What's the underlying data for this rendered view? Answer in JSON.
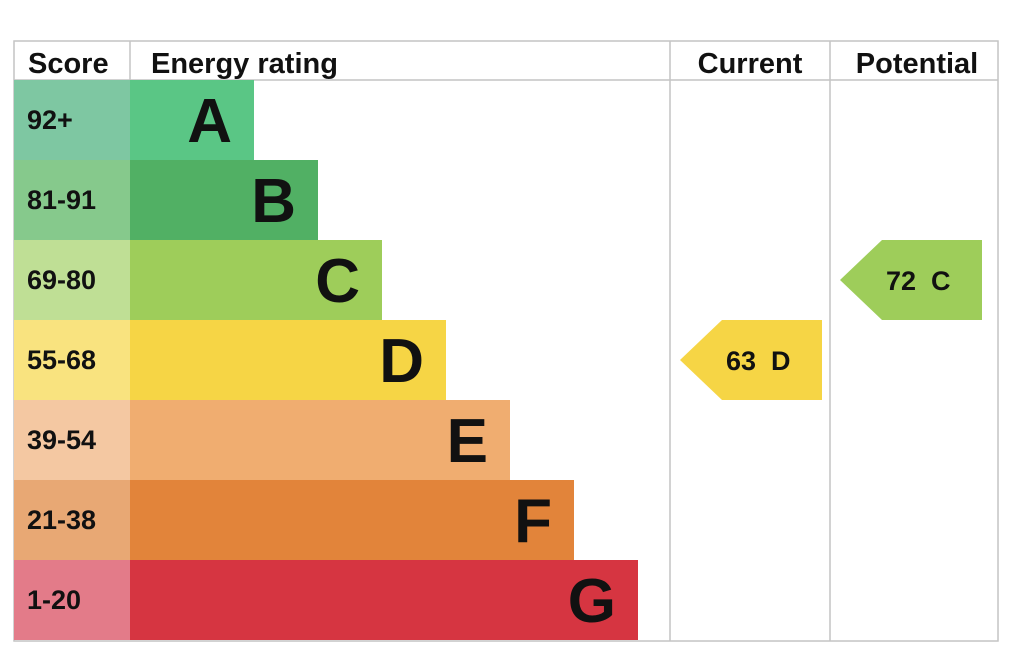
{
  "chart_data": {
    "type": "table",
    "headers": {
      "score": "Score",
      "rating": "Energy rating",
      "current": "Current",
      "potential": "Potential"
    },
    "bands": [
      {
        "score": "92+",
        "letter": "A",
        "color": "#5ac685",
        "score_color": "#7ec7a2"
      },
      {
        "score": "81-91",
        "letter": "B",
        "color": "#51b064",
        "score_color": "#86c98c"
      },
      {
        "score": "69-80",
        "letter": "C",
        "color": "#9ecd5a",
        "score_color": "#bfdf95"
      },
      {
        "score": "55-68",
        "letter": "D",
        "color": "#f6d545",
        "score_color": "#f9e37f"
      },
      {
        "score": "39-54",
        "letter": "E",
        "color": "#f0ad70",
        "score_color": "#f4c8a2"
      },
      {
        "score": "21-38",
        "letter": "F",
        "color": "#e2843a",
        "score_color": "#e8a874"
      },
      {
        "score": "1-20",
        "letter": "G",
        "color": "#d63541",
        "score_color": "#e37b89"
      }
    ],
    "current": {
      "value": "63",
      "letter": "D",
      "label": "63  D",
      "color": "#f6d545"
    },
    "potential": {
      "value": "72",
      "letter": "C",
      "label": "72  C",
      "color": "#9ecd5a"
    }
  }
}
